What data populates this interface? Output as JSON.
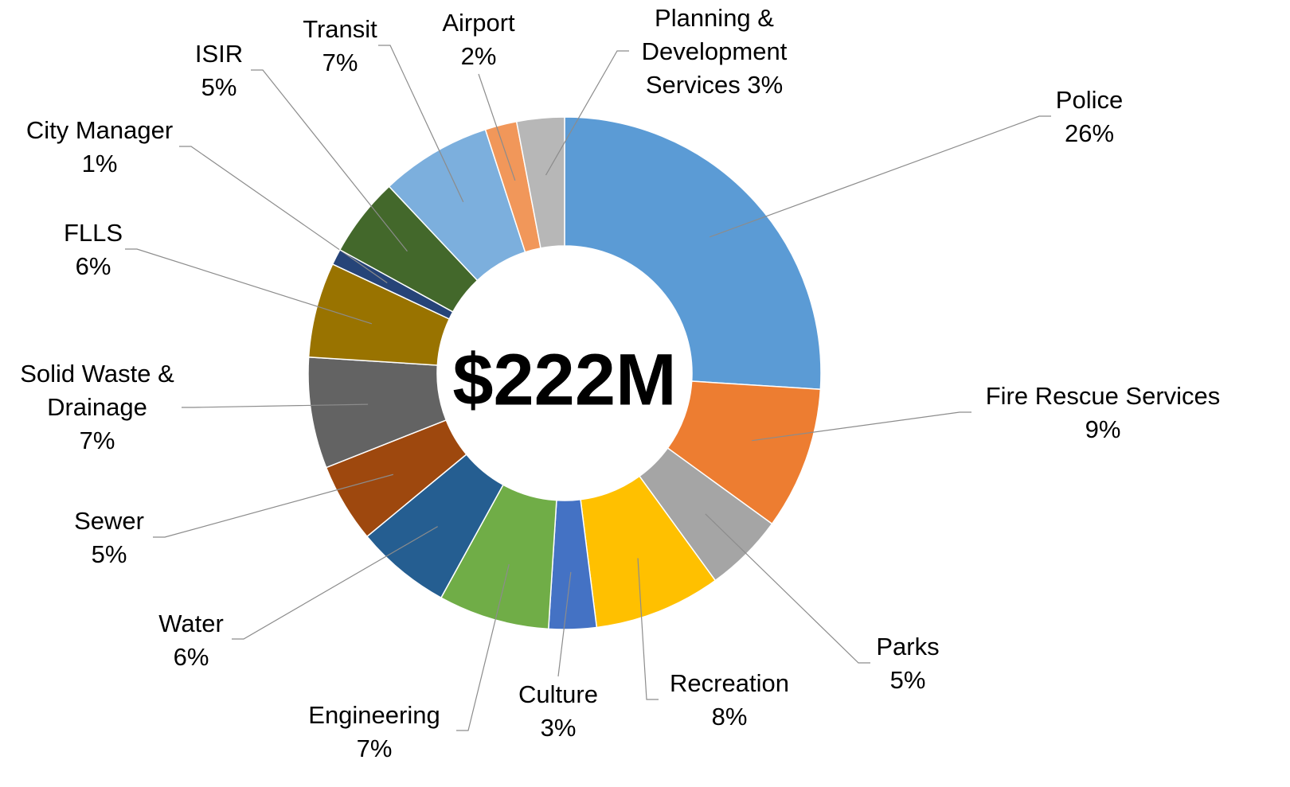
{
  "chart_data": {
    "type": "donut",
    "center_label": "$222M",
    "categories": [
      "Police",
      "Fire Rescue Services",
      "Parks",
      "Recreation",
      "Culture",
      "Engineering",
      "Water",
      "Sewer",
      "Solid Waste & Drainage",
      "FLLS",
      "City Manager",
      "ISIR",
      "Transit",
      "Airport",
      "Planning & Development Services"
    ],
    "values": [
      26,
      9,
      5,
      8,
      3,
      7,
      6,
      5,
      7,
      6,
      1,
      5,
      7,
      2,
      3
    ],
    "value_labels": [
      "26%",
      "9%",
      "5%",
      "8%",
      "3%",
      "7%",
      "6%",
      "5%",
      "7%",
      "6%",
      "1%",
      "5%",
      "7%",
      "2%",
      "3%"
    ],
    "colors": [
      "#5b9bd5",
      "#ed7d31",
      "#a5a5a5",
      "#ffc000",
      "#4472c4",
      "#70ad47",
      "#255e91",
      "#9e480e",
      "#636363",
      "#997300",
      "#264478",
      "#43682b",
      "#7cafdd",
      "#f1975a",
      "#b7b7b7"
    ]
  }
}
